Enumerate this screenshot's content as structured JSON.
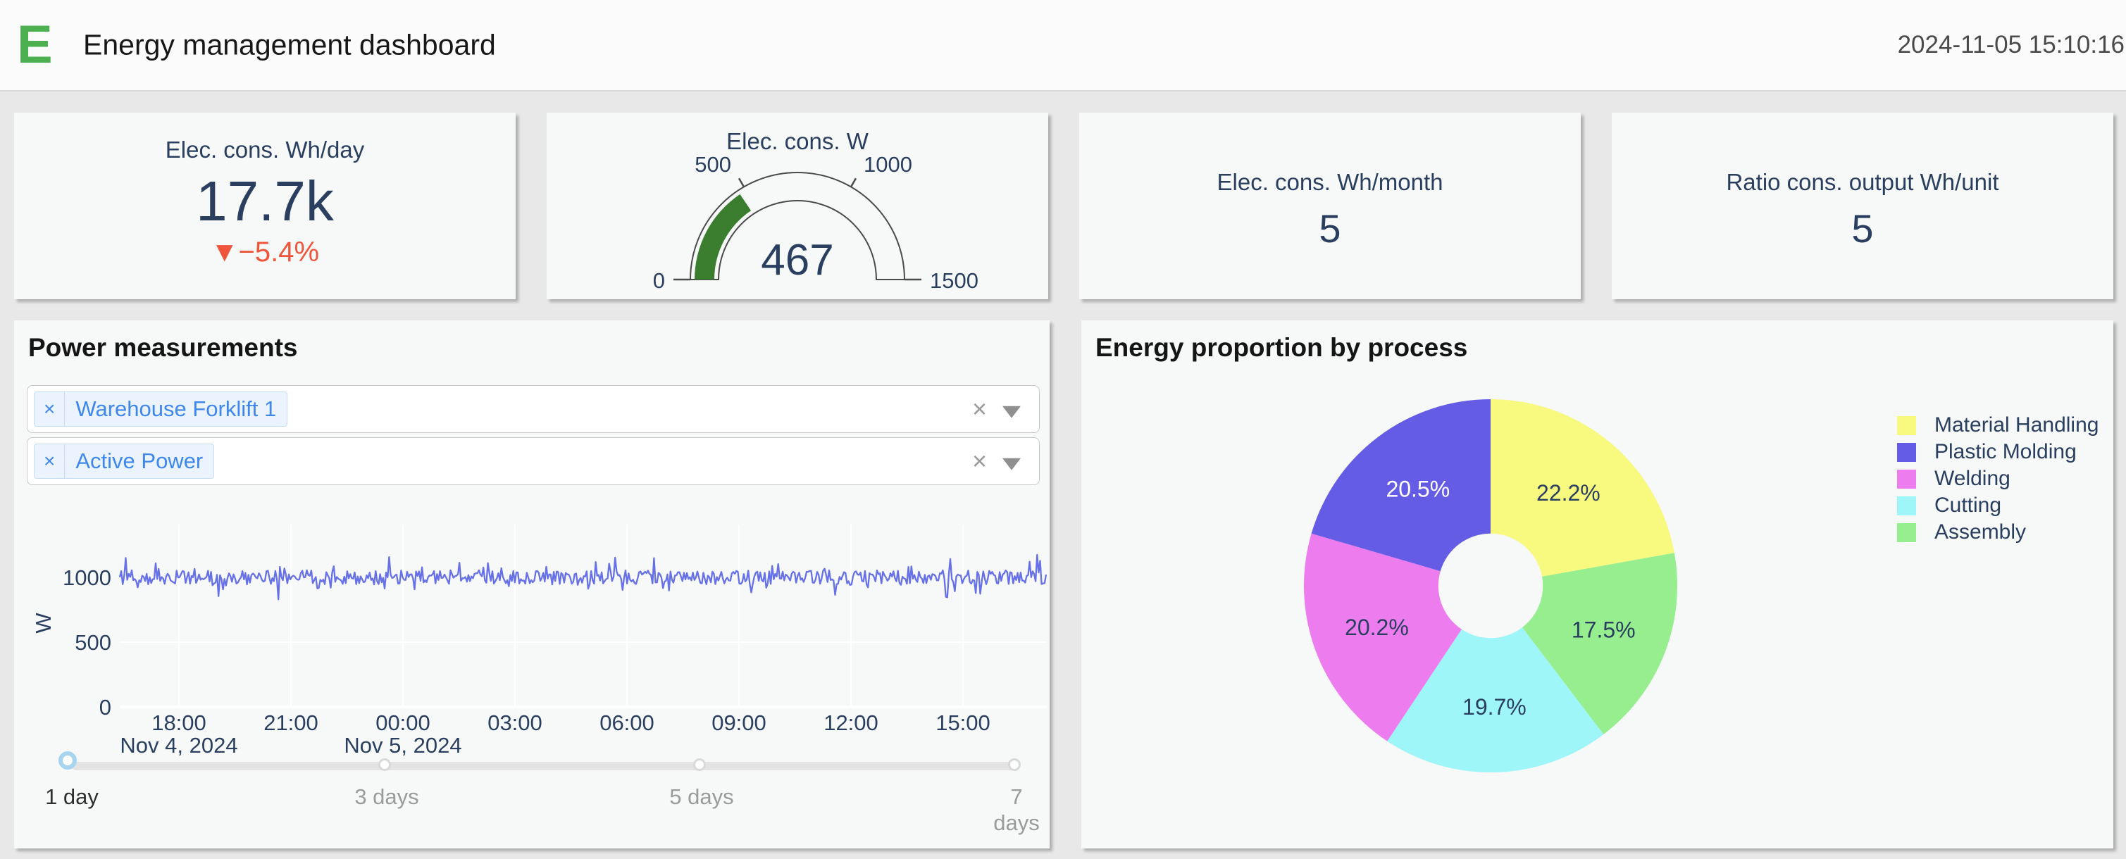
{
  "header": {
    "logo": "E",
    "title": "Energy management dashboard",
    "timestamp": "2024-11-05 15:10:16"
  },
  "colors": {
    "accent_green": "#4caf50",
    "navy_text": "#2a3f5f",
    "delta_red": "#ef553b",
    "line_series": "#6670e8",
    "gauge_bar": "#3a7d2f",
    "grid": "#ffffff"
  },
  "kpis": {
    "daily": {
      "title": "Elec. cons. Wh/day",
      "value": "17.7k",
      "delta": "▼−5.4%"
    },
    "gauge": {
      "title": "Elec. cons. W",
      "value": 467,
      "min": 0,
      "max": 1500,
      "tick_values": [
        0,
        500,
        1000,
        1500
      ],
      "bar_color": "#3a7d2f",
      "value_color": "#2a3f5f"
    },
    "monthly": {
      "title": "Elec. cons. Wh/month",
      "value": "5"
    },
    "ratio": {
      "title": "Ratio cons. output Wh/unit",
      "value": "5"
    }
  },
  "power_panel": {
    "title": "Power measurements",
    "filters": [
      {
        "chip": "Warehouse Forklift 1",
        "remove_icon": "×",
        "clear_icon": "×"
      },
      {
        "chip": "Active Power",
        "remove_icon": "×",
        "clear_icon": "×"
      }
    ],
    "slider": {
      "marks": [
        {
          "label": "1 day",
          "active": true
        },
        {
          "label": "3 days",
          "active": false
        },
        {
          "label": "5 days",
          "active": false
        },
        {
          "label": "7",
          "sub": "days",
          "active": false
        }
      ]
    }
  },
  "pie_panel": {
    "title": "Energy proportion by process"
  },
  "chart_data": [
    {
      "type": "line",
      "name": "Active Power – Warehouse Forklift 1",
      "color": "#6670e8",
      "ylabel": "W",
      "yticks": [
        0,
        500,
        1000
      ],
      "ylim": [
        0,
        1300
      ],
      "xticks": [
        "18:00",
        "21:00",
        "00:00",
        "03:00",
        "06:00",
        "09:00",
        "12:00",
        "15:00"
      ],
      "xdates": [
        {
          "label": "Nov 4, 2024",
          "tick_index": 0
        },
        {
          "label": "Nov 5, 2024",
          "tick_index": 2
        }
      ],
      "signal": {
        "mean_w": 1000,
        "noise_w": 55,
        "spike_w": 90,
        "spike_prob": 0.12,
        "points": 620,
        "seed": 12
      },
      "grid": true,
      "legend_position": "none"
    },
    {
      "type": "pie",
      "title": "Energy proportion by process",
      "hole": 0.28,
      "slices_clockwise_from_top": [
        {
          "label": "Material Handling",
          "pct": 22.2,
          "color": "#f8f97f",
          "text_color": "#2a3f5f"
        },
        {
          "label": "Assembly",
          "pct": 17.5,
          "color": "#97ee8e",
          "text_color": "#2a3f5f"
        },
        {
          "label": "Cutting",
          "pct": 19.7,
          "color": "#9ef6f8",
          "text_color": "#2a3f5f"
        },
        {
          "label": "Welding",
          "pct": 20.2,
          "color": "#ed7def",
          "text_color": "#2a3f5f"
        },
        {
          "label": "Plastic Molding",
          "pct": 20.5,
          "color": "#655ce5",
          "text_color": "#ffffff"
        }
      ],
      "legend": [
        "Material Handling",
        "Plastic Molding",
        "Welding",
        "Cutting",
        "Assembly"
      ],
      "legend_position": "right"
    }
  ]
}
